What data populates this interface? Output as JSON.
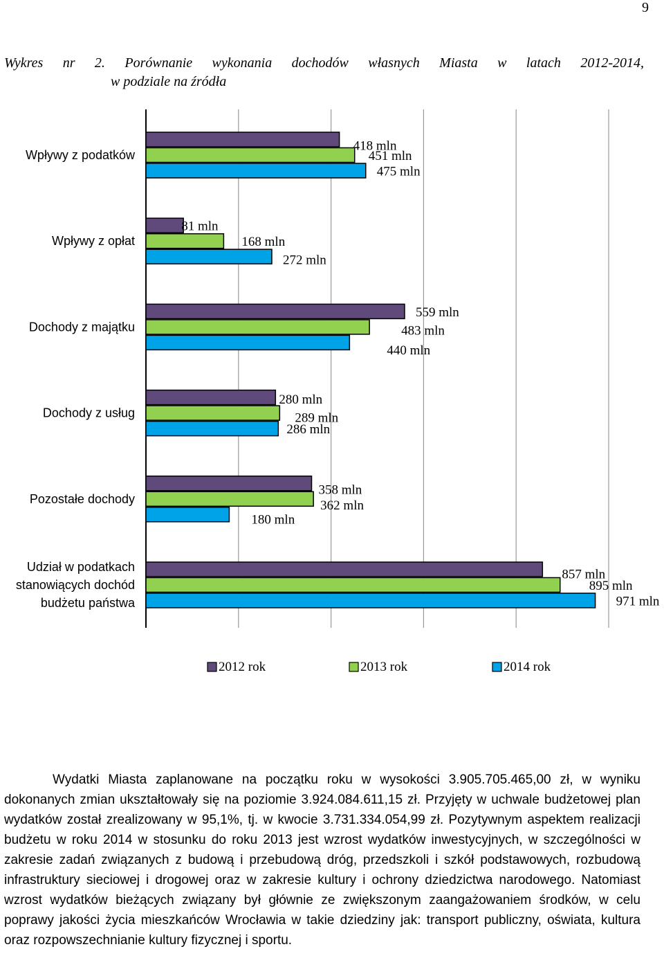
{
  "page": {
    "number": "9"
  },
  "title": {
    "line1": "Wykres nr 2. Porównanie wykonania dochodów własnych Miasta w latach 2012-2014,",
    "line2": "w podziale na źródła"
  },
  "colors": {
    "2012": "#604a7b",
    "2013": "#92d050",
    "2014": "#00a2e8",
    "outline": "#000000"
  },
  "chart_data": {
    "type": "bar",
    "orientation": "horizontal",
    "categories": [
      "Wpływy z podatków",
      "Wpływy z opłat",
      "Dochody z majątku",
      "Dochody z usług",
      "Pozostałe dochody",
      "Udział w podatkach stanowiących dochód budżetu państwa"
    ],
    "category_lines": [
      [
        "Wpływy z podatków"
      ],
      [
        "Wpływy z opłat"
      ],
      [
        "Dochody z majątku"
      ],
      [
        "Dochody z usług"
      ],
      [
        "Pozostałe dochody"
      ],
      [
        "Udział w podatkach",
        "stanowiących dochód",
        "budżetu państwa"
      ]
    ],
    "series": [
      {
        "name": "2012 rok",
        "values": [
          418,
          81,
          559,
          280,
          358,
          857
        ]
      },
      {
        "name": "2013 rok",
        "values": [
          451,
          168,
          483,
          289,
          362,
          895
        ]
      },
      {
        "name": "2014 rok",
        "values": [
          475,
          272,
          440,
          286,
          180,
          971
        ]
      }
    ],
    "data_labels": [
      [
        "418 mln",
        "81 mln",
        "559 mln",
        "280 mln",
        "358 mln",
        "857 mln"
      ],
      [
        "451 mln",
        "168 mln",
        "483 mln",
        "289 mln",
        "362 mln",
        "895 mln"
      ],
      [
        "475 mln",
        "272 mln",
        "440 mln",
        "286 mln",
        "180 mln",
        "971 mln"
      ]
    ],
    "unit": "mln",
    "xlim": [
      0,
      1000
    ],
    "grid": true,
    "legend_position": "bottom",
    "legend_entries": [
      "2012 rok",
      "2013 rok",
      "2014 rok"
    ]
  },
  "body": {
    "paragraph": "Wydatki Miasta zaplanowane na początku roku w wysokości 3.905.705.465,00 zł, w wyniku dokonanych zmian ukształtowały się na poziomie 3.924.084.611,15 zł. Przyjęty w uchwale budżetowej plan wydatków został zrealizowany w 95,1%, tj. w kwocie 3.731.334.054,99 zł. Pozytywnym aspektem realizacji budżetu w roku 2014 w stosunku do roku 2013 jest wzrost wydatków inwestycyjnych, w szczególności w zakresie zadań związanych z budową i przebudową dróg, przedszkoli i szkół podstawowych, rozbudową infrastruktury sieciowej i drogowej oraz w zakresie kultury i ochrony dziedzictwa narodowego. Natomiast wzrost wydatków bieżących związany był głównie ze zwiększonym zaangażowaniem środków, w celu poprawy jakości życia mieszkańców Wrocławia w takie dziedziny jak: transport publiczny, oświata, kultura oraz rozpowszechnianie kultury fizycznej i sportu."
  }
}
